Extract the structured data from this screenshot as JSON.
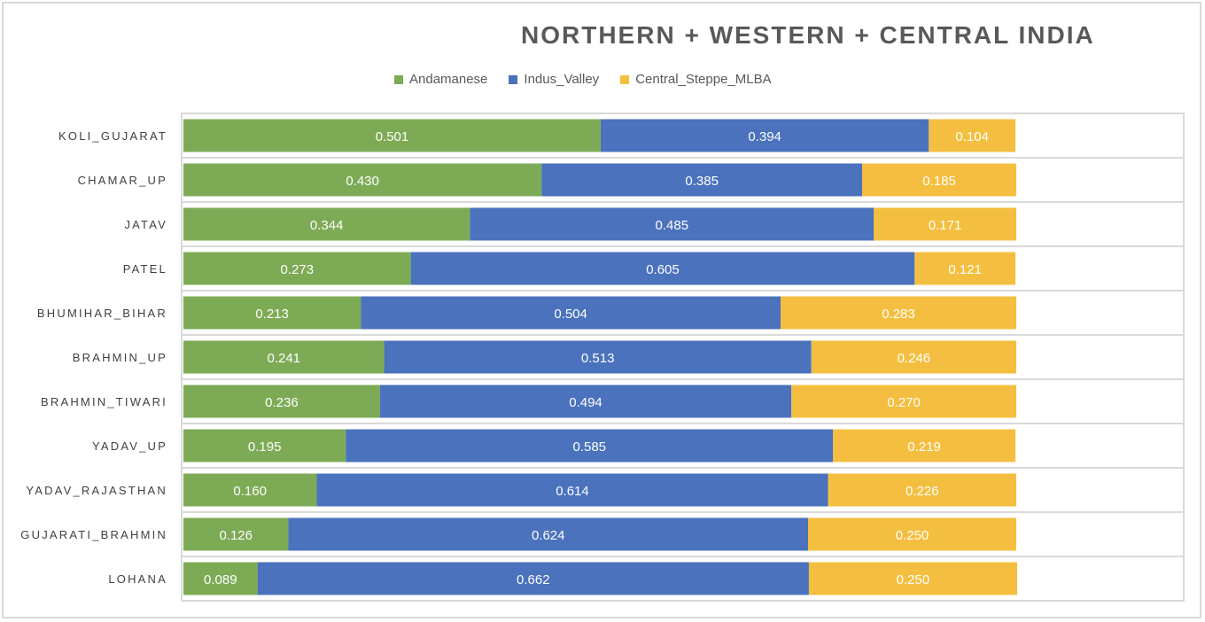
{
  "chart_data": {
    "type": "bar",
    "orientation": "horizontal",
    "stacked": true,
    "title": "NORTHERN + WESTERN + CENTRAL INDIA",
    "xlabel": "",
    "ylabel": "",
    "xlim": [
      0,
      1
    ],
    "legend_position": "top",
    "grid": false,
    "categories": [
      "KOLI_GUJARAT",
      "CHAMAR_UP",
      "JATAV",
      "PATEL",
      "BHUMIHAR_BIHAR",
      "BRAHMIN_UP",
      "BRAHMIN_TIWARI",
      "YADAV_UP",
      "YADAV_RAJASTHAN",
      "GUJARATI_BRAHMIN",
      "LOHANA"
    ],
    "series": [
      {
        "name": "Andamanese",
        "color": "#7dab55",
        "values": [
          0.501,
          0.43,
          0.344,
          0.273,
          0.213,
          0.241,
          0.236,
          0.195,
          0.16,
          0.126,
          0.089
        ]
      },
      {
        "name": "Indus_Valley",
        "color": "#4a72bd",
        "values": [
          0.394,
          0.385,
          0.485,
          0.605,
          0.504,
          0.513,
          0.494,
          0.585,
          0.614,
          0.624,
          0.662
        ]
      },
      {
        "name": "Central_Steppe_MLBA",
        "color": "#f4bf40",
        "values": [
          0.104,
          0.185,
          0.171,
          0.121,
          0.283,
          0.246,
          0.27,
          0.219,
          0.226,
          0.25,
          0.25
        ]
      }
    ],
    "data_labels": {
      "Andamanese": [
        "0.501",
        "0.430",
        "0.344",
        "0.273",
        "0.213",
        "0.241",
        "0.236",
        "0.195",
        "0.160",
        "0.126",
        "0.089"
      ],
      "Indus_Valley": [
        "0.394",
        "0.385",
        "0.485",
        "0.605",
        "0.504",
        "0.513",
        "0.494",
        "0.585",
        "0.614",
        "0.624",
        "0.662"
      ],
      "Central_Steppe_MLBA": [
        "0.104",
        "0.185",
        "0.171",
        "0.121",
        "0.283",
        "0.246",
        "0.270",
        "0.219",
        "0.226",
        "0.250",
        "0.250"
      ]
    }
  },
  "legend": [
    {
      "label": "Andamanese",
      "color": "#7dab55"
    },
    {
      "label": "Indus_Valley",
      "color": "#4a72bd"
    },
    {
      "label": "Central_Steppe_MLBA",
      "color": "#f4bf40"
    }
  ]
}
